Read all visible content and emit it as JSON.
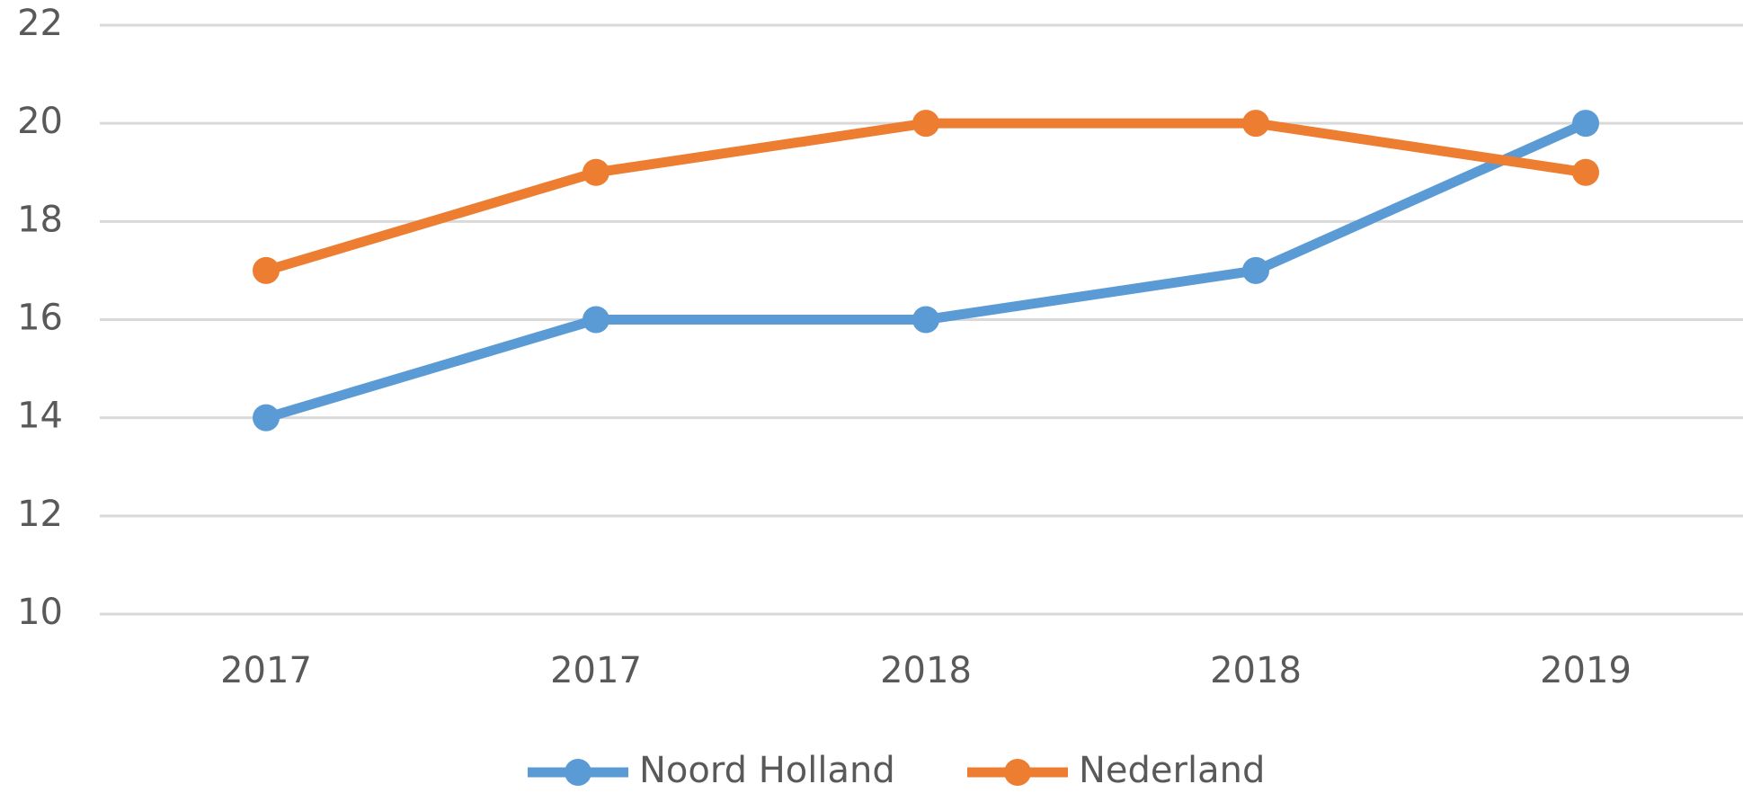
{
  "chart_data": {
    "type": "line",
    "categories": [
      "2017",
      "2017",
      "2018",
      "2018",
      "2019"
    ],
    "series": [
      {
        "name": "Noord Holland",
        "color": "#5b9bd5",
        "values": [
          14,
          16,
          16,
          17,
          20
        ]
      },
      {
        "name": "Nederland",
        "color": "#ed7d31",
        "values": [
          17,
          19,
          20,
          20,
          19
        ]
      }
    ],
    "ylim": [
      10,
      22
    ],
    "yticks": [
      10,
      12,
      14,
      16,
      18,
      20,
      22
    ],
    "grid": true,
    "legend": "bottom"
  }
}
